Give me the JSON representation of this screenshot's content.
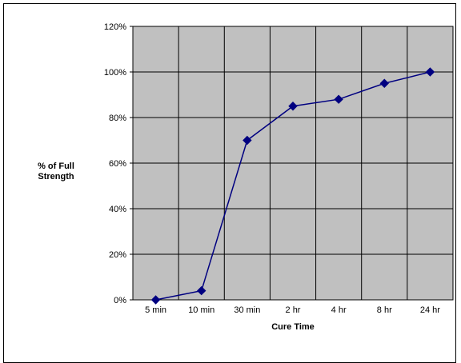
{
  "chart_data": {
    "type": "line",
    "categories": [
      "5 min",
      "10 min",
      "30 min",
      "2 hr",
      "4 hr",
      "8 hr",
      "24 hr"
    ],
    "values": [
      0,
      4,
      70,
      85,
      88,
      95,
      100
    ],
    "xlabel": "Cure Time",
    "ylabel_lines": [
      "% of Full",
      "Strength"
    ],
    "ylim": [
      0,
      120
    ],
    "yticks": [
      0,
      20,
      40,
      60,
      80,
      100,
      120
    ],
    "ytick_labels": [
      "0%",
      "20%",
      "40%",
      "60%",
      "80%",
      "100%",
      "120%"
    ],
    "grid": true,
    "legend": false,
    "colors": {
      "plot_background": "#c0c0c0",
      "series_line": "#000080",
      "marker": "#000080",
      "gridline": "#000000"
    }
  }
}
